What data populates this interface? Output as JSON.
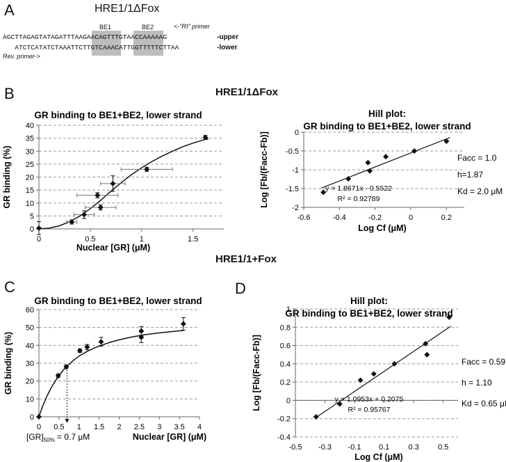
{
  "panel_a": {
    "letter": "A",
    "title": "HRE1/1ΔFox",
    "be1": "BE1",
    "be2": "BE2",
    "ri_primer": "<-\"RI\" primer",
    "upper": {
      "s1": "AGCTTAGAGTATAGATTTA",
      "s2": "AGAACAG",
      "s3": "TTT",
      "s4": "GTAACC",
      "s5": "AAAAAG",
      "label": "-upper"
    },
    "lower": {
      "s1": "   ATCTCATATCTAAAT",
      "s2": "TCTTGTC",
      "s3": "AAA",
      "s4": "CATTGG",
      "s5": "TTTTTCTTAA",
      "label": "-lower"
    },
    "rev_primer": "Rev. primer->"
  },
  "panel_b": {
    "letter": "B",
    "heading": "HRE1/1ΔFox"
  },
  "panel_c": {
    "letter": "C"
  },
  "panel_d": {
    "letter": "D"
  },
  "section2_heading": "HRE1/1+Fox",
  "chart_data": [
    {
      "id": "B-left",
      "type": "scatter",
      "title": "GR binding to BE1+BE2, lower strand",
      "xlabel": "Nuclear [GR] (μM)",
      "ylabel": "GR binding (%)",
      "xlim": [
        0,
        1.8
      ],
      "ylim": [
        0,
        40
      ],
      "xticks": [
        0,
        0.5,
        1,
        1.5
      ],
      "yticks": [
        0,
        5,
        10,
        15,
        20,
        25,
        30,
        35,
        40
      ],
      "grid": "horizontal dashed",
      "points": [
        {
          "x": 0,
          "y": 0.3,
          "yerr": 2.5
        },
        {
          "x": 0.32,
          "y": 2.7,
          "yerr": 0.8,
          "xerr": 0.05
        },
        {
          "x": 0.44,
          "y": 5.5,
          "yerr": 1.5,
          "xerr": 0.1
        },
        {
          "x": 0.57,
          "y": 13,
          "yerr": 1,
          "xerr": 0.2
        },
        {
          "x": 0.6,
          "y": 8.3,
          "yerr": 1,
          "xerr": 0.15
        },
        {
          "x": 0.72,
          "y": 17.5,
          "yerr": 3,
          "xerr": 0.12
        },
        {
          "x": 1.05,
          "y": 23,
          "yerr": 0.8,
          "xerr": 0.25
        },
        {
          "x": 1.62,
          "y": 35.3,
          "yerr": 0.8
        }
      ],
      "fit": [
        [
          0,
          0
        ],
        [
          0.1,
          0.3
        ],
        [
          0.2,
          1.2
        ],
        [
          0.3,
          2.8
        ],
        [
          0.4,
          5
        ],
        [
          0.5,
          7.8
        ],
        [
          0.6,
          11
        ],
        [
          0.7,
          14.5
        ],
        [
          0.8,
          17.8
        ],
        [
          0.9,
          20.9
        ],
        [
          1.0,
          23.6
        ],
        [
          1.1,
          26
        ],
        [
          1.2,
          28.1
        ],
        [
          1.3,
          30
        ],
        [
          1.4,
          31.7
        ],
        [
          1.5,
          33.1
        ],
        [
          1.6,
          34.3
        ],
        [
          1.65,
          34.8
        ]
      ]
    },
    {
      "id": "B-right",
      "type": "scatter",
      "title_line1": "Hill plot:",
      "title_line2": "GR binding to BE1+BE2, lower strand",
      "xlabel": "Log Cf (μM)",
      "ylabel": "Log [Fb/(Facc-Fb)]",
      "xlim": [
        -0.6,
        0.3
      ],
      "ylim": [
        -2,
        0
      ],
      "xticks": [
        -0.6,
        -0.4,
        -0.2,
        0,
        0.2
      ],
      "yticks": [
        0,
        -0.5,
        -1,
        -1.5,
        -2
      ],
      "xtick_labels": [
        "-0.6",
        "-0.4",
        "-0.2",
        "0",
        "0.2"
      ],
      "ytick_labels": [
        "0",
        "-0.5",
        "-1",
        "-1.5",
        "-2"
      ],
      "grid": "horizontal dashed",
      "points": [
        [
          -0.49,
          -1.6
        ],
        [
          -0.35,
          -1.24
        ],
        [
          -0.24,
          -0.81
        ],
        [
          -0.23,
          -1.03
        ],
        [
          -0.14,
          -0.65
        ],
        [
          0.02,
          -0.5
        ],
        [
          0.2,
          -0.24
        ]
      ],
      "trendline": {
        "slope": 1.8671,
        "intercept": -0.5522,
        "x": [
          -0.5,
          0.22
        ]
      },
      "equation": "y = 1.8671x - 0.5522",
      "r2": "R² = 0.92789",
      "annotations": [
        "Facc = 1.0",
        "h=1.87",
        "Kd = 2.0 μM"
      ]
    },
    {
      "id": "C",
      "type": "scatter",
      "title": "GR binding to BE1+BE2, lower strand",
      "xlabel": "Nuclear [GR] (μM)",
      "ylabel": "GR binding (%)",
      "xlim": [
        0,
        4
      ],
      "ylim": [
        0,
        60
      ],
      "xticks": [
        0,
        0.5,
        1,
        1.5,
        2,
        2.5,
        3,
        3.5,
        4
      ],
      "yticks": [
        0,
        10,
        20,
        30,
        40,
        50,
        60
      ],
      "grid": "horizontal dashed",
      "points": [
        {
          "x": 0,
          "y": 0
        },
        {
          "x": 0.48,
          "y": 23,
          "yerr": 1
        },
        {
          "x": 0.68,
          "y": 28,
          "yerr": 1
        },
        {
          "x": 1.02,
          "y": 37,
          "yerr": 1
        },
        {
          "x": 1.2,
          "y": 39,
          "yerr": 1.5
        },
        {
          "x": 1.55,
          "y": 42,
          "yerr": 2.5
        },
        {
          "x": 2.55,
          "y": 48,
          "yerr": 2.5
        },
        {
          "x": 2.55,
          "y": 44.5,
          "yerr": 3
        },
        {
          "x": 3.6,
          "y": 52,
          "yerr": 3.5
        }
      ],
      "fit": [
        [
          0,
          0
        ],
        [
          0.1,
          6.4
        ],
        [
          0.2,
          11.5
        ],
        [
          0.3,
          16
        ],
        [
          0.4,
          19.8
        ],
        [
          0.5,
          23
        ],
        [
          0.6,
          26
        ],
        [
          0.7,
          28.3
        ],
        [
          0.85,
          31.4
        ],
        [
          1,
          34
        ],
        [
          1.2,
          36.6
        ],
        [
          1.4,
          38.7
        ],
        [
          1.6,
          40.4
        ],
        [
          1.8,
          41.9
        ],
        [
          2,
          43.1
        ],
        [
          2.3,
          44.6
        ],
        [
          2.6,
          45.8
        ],
        [
          3,
          47
        ],
        [
          3.3,
          47.7
        ],
        [
          3.6,
          48.3
        ]
      ],
      "gr50_x": 0.7,
      "gr50_label": "[GR]",
      "gr50_sub": "50%",
      "gr50_value": " = 0.7 μM"
    },
    {
      "id": "D",
      "type": "scatter",
      "title_line1": "Hill plot:",
      "title_line2": "GR binding to BE1+BE2, lower strand",
      "xlabel": "Log Cf (μM)",
      "ylabel": "Log [Fb/(Facc-Fb)]",
      "xlim": [
        -0.5,
        0.6
      ],
      "ylim": [
        -0.4,
        1
      ],
      "xticks": [
        -0.5,
        -0.3,
        -0.1,
        0.1,
        0.3,
        0.5
      ],
      "yticks": [
        1,
        0.8,
        0.6,
        0.4,
        0.2,
        0,
        -0.2,
        -0.4
      ],
      "xtick_labels": [
        "-0.5",
        "-0.3",
        "-0.1",
        "0.1",
        "0.3",
        "0.5"
      ],
      "ytick_labels": [
        "1",
        "0.8",
        "0.6",
        "0.4",
        "0.2",
        "0",
        "-0.2",
        "-0.4"
      ],
      "grid": "horizontal dashed",
      "points": [
        [
          -0.36,
          -0.18
        ],
        [
          -0.2,
          -0.04
        ],
        [
          -0.06,
          0.22
        ],
        [
          0.03,
          0.29
        ],
        [
          0.17,
          0.4
        ],
        [
          0.38,
          0.62
        ],
        [
          0.39,
          0.5
        ],
        [
          0.54,
          0.91
        ]
      ],
      "trendline": {
        "slope": 1.0953,
        "intercept": 0.2075,
        "x": [
          -0.36,
          0.55
        ]
      },
      "equation": "y = 1.0953x + 0.2075",
      "r2": "R² = 0.95767",
      "annotations": [
        "Facc = 0.59",
        "h = 1.10",
        "Kd = 0.65 μM"
      ]
    }
  ]
}
